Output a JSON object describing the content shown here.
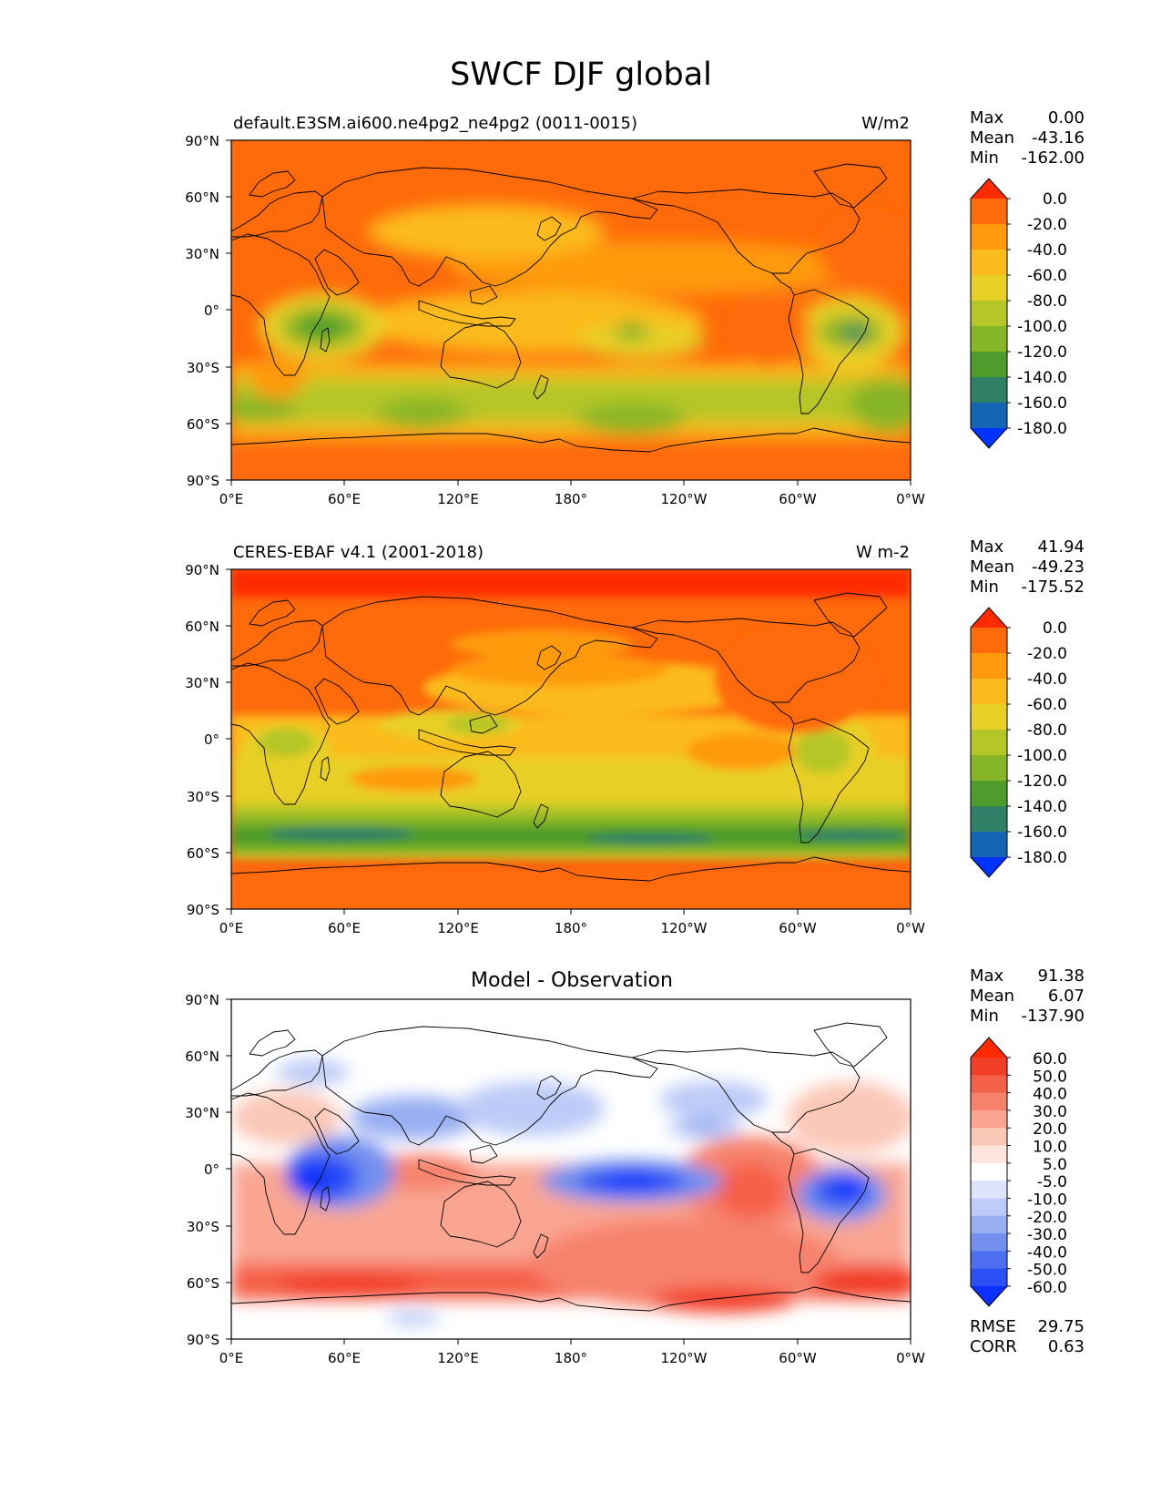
{
  "title": "SWCF DJF global",
  "panels": [
    {
      "name": "test",
      "left_title": "default.E3SM.ai600.ne4pg2_ne4pg2 (0011-0015)",
      "right_title": "W/m2",
      "center_title": "",
      "stats": {
        "labels": [
          "Max",
          "Mean",
          "Min"
        ],
        "values": [
          "0.00",
          "-43.16",
          "-162.00"
        ]
      },
      "colorbar_labels": [
        "0.0",
        "-20.0",
        "-40.0",
        "-60.0",
        "-80.0",
        "-100.0",
        "-120.0",
        "-140.0",
        "-160.0",
        "-180.0"
      ],
      "colorbar_colors": [
        "#ff2a00",
        "#ff6a0a",
        "#ff9a10",
        "#fbbb1c",
        "#e8cf28",
        "#b5c628",
        "#86b528",
        "#4e9c2c",
        "#2f8067",
        "#1565b5",
        "#0033ff"
      ]
    },
    {
      "name": "reference",
      "left_title": "CERES-EBAF v4.1 (2001-2018)",
      "right_title": "W m-2",
      "center_title": "",
      "stats": {
        "labels": [
          "Max",
          "Mean",
          "Min"
        ],
        "values": [
          "41.94",
          "-49.23",
          "-175.52"
        ]
      },
      "colorbar_labels": [
        "0.0",
        "-20.0",
        "-40.0",
        "-60.0",
        "-80.0",
        "-100.0",
        "-120.0",
        "-140.0",
        "-160.0",
        "-180.0"
      ],
      "colorbar_colors": [
        "#ff2a00",
        "#ff6a0a",
        "#ff9a10",
        "#fbbb1c",
        "#e8cf28",
        "#b5c628",
        "#86b528",
        "#4e9c2c",
        "#2f8067",
        "#1565b5",
        "#0033ff"
      ]
    },
    {
      "name": "difference",
      "left_title": "",
      "right_title": "",
      "center_title": "Model - Observation",
      "stats": {
        "labels": [
          "Max",
          "Mean",
          "Min"
        ],
        "values": [
          "91.38",
          "6.07",
          "-137.90"
        ]
      },
      "extra_stats": {
        "labels": [
          "RMSE",
          "CORR"
        ],
        "values": [
          "29.75",
          "0.63"
        ]
      },
      "colorbar_labels": [
        "60.0",
        "50.0",
        "40.0",
        "30.0",
        "20.0",
        "10.0",
        "5.0",
        "-5.0",
        "-10.0",
        "-20.0",
        "-30.0",
        "-40.0",
        "-50.0",
        "-60.0"
      ],
      "colorbar_colors": [
        "#ff2a00",
        "#f23d28",
        "#f5604a",
        "#f7826c",
        "#f9a592",
        "#fbc8b8",
        "#fde4dc",
        "#ffffff",
        "#dde4fb",
        "#bccbf7",
        "#98aef2",
        "#7390ee",
        "#4d6ff0",
        "#2a4ff5",
        "#0a30ff"
      ]
    }
  ],
  "chart_data": [
    {
      "type": "heatmap",
      "title": "default.E3SM.ai600.ne4pg2_ne4pg2 (0011-0015)",
      "units": "W/m2",
      "x_ticks": [
        "0°E",
        "60°E",
        "120°E",
        "180°",
        "120°W",
        "60°W",
        "0°W"
      ],
      "y_ticks": [
        "90°N",
        "60°N",
        "30°N",
        "0°",
        "30°S",
        "60°S",
        "90°S"
      ],
      "xlim": [
        0,
        360
      ],
      "ylim": [
        -90,
        90
      ],
      "levels": [
        -180,
        -160,
        -140,
        -120,
        -100,
        -80,
        -60,
        -40,
        -20,
        0
      ],
      "stats": {
        "max": 0.0,
        "mean": -43.16,
        "min": -162.0
      }
    },
    {
      "type": "heatmap",
      "title": "CERES-EBAF v4.1 (2001-2018)",
      "units": "W m-2",
      "x_ticks": [
        "0°E",
        "60°E",
        "120°E",
        "180°",
        "120°W",
        "60°W",
        "0°W"
      ],
      "y_ticks": [
        "90°N",
        "60°N",
        "30°N",
        "0°",
        "30°S",
        "60°S",
        "90°S"
      ],
      "xlim": [
        0,
        360
      ],
      "ylim": [
        -90,
        90
      ],
      "levels": [
        -180,
        -160,
        -140,
        -120,
        -100,
        -80,
        -60,
        -40,
        -20,
        0
      ],
      "stats": {
        "max": 41.94,
        "mean": -49.23,
        "min": -175.52
      }
    },
    {
      "type": "heatmap",
      "title": "Model - Observation",
      "x_ticks": [
        "0°E",
        "60°E",
        "120°E",
        "180°",
        "120°W",
        "60°W",
        "0°W"
      ],
      "y_ticks": [
        "90°N",
        "60°N",
        "30°N",
        "0°",
        "30°S",
        "60°S",
        "90°S"
      ],
      "xlim": [
        0,
        360
      ],
      "ylim": [
        -90,
        90
      ],
      "levels": [
        -60,
        -50,
        -40,
        -30,
        -20,
        -10,
        -5,
        5,
        10,
        20,
        30,
        40,
        50,
        60
      ],
      "stats": {
        "max": 91.38,
        "mean": 6.07,
        "min": -137.9,
        "rmse": 29.75,
        "corr": 0.63
      }
    }
  ]
}
